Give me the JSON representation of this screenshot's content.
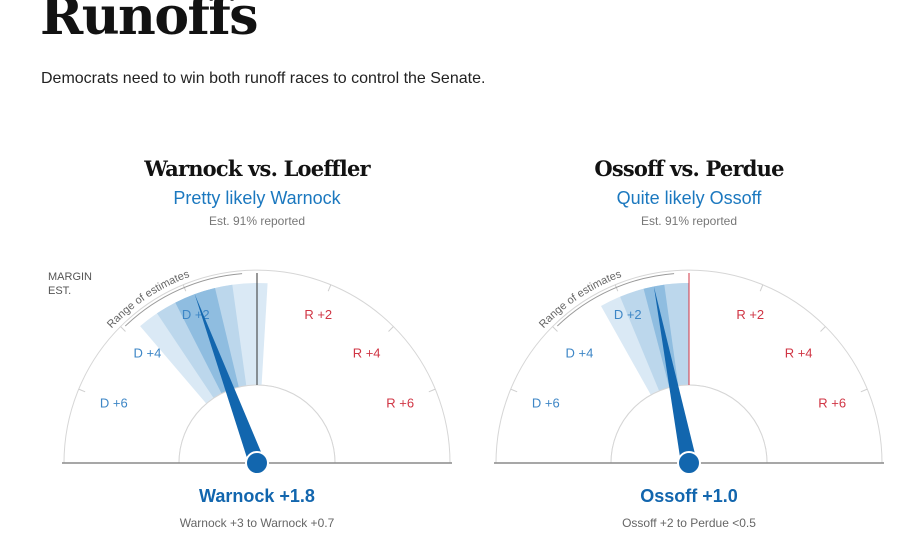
{
  "page": {
    "title": "Runoffs",
    "subtitle": "Democrats need to win both runoff races to control the Senate."
  },
  "legend": {
    "margin_label": "MARGIN",
    "est_label": "EST.",
    "range_label": "Range of estimates"
  },
  "colors": {
    "dem": "#1266ae",
    "dem_text": "#3d86c6",
    "rep": "#d03544",
    "band_outer": "#dae9f5",
    "band_mid": "#bcd7ec",
    "band_inner": "#8fbde0",
    "lean_text": "#1b78bf"
  },
  "chart_data": [
    {
      "type": "gauge",
      "title": "Warnock vs. Loeffler",
      "lean": "Pretty likely Warnock",
      "reported": "Est. 91% reported",
      "scale": "D +8 to R +8 margin, center 0",
      "tick_labels": [
        "D +6",
        "D +4",
        "D +2",
        "R +2",
        "R +4",
        "R +6"
      ],
      "ticks": [
        -6,
        -4,
        -2,
        2,
        4,
        6
      ],
      "estimate": -1.8,
      "bands": {
        "outer": [
          -3.6,
          0.3
        ],
        "mid": [
          -3.0,
          -0.7
        ],
        "inner": [
          -2.4,
          -1.2
        ]
      },
      "result_label": "Warnock +1.8",
      "range_label": "Warnock +3 to Warnock +0.7",
      "show_range_caption": true,
      "show_margin_label": true
    },
    {
      "type": "gauge",
      "title": "Ossoff vs. Perdue",
      "lean": "Quite likely Ossoff",
      "reported": "Est. 91% reported",
      "scale": "D +8 to R +8 margin, center 0",
      "tick_labels": [
        "D +6",
        "D +4",
        "D +2",
        "R +2",
        "R +4",
        "R +6"
      ],
      "ticks": [
        -6,
        -4,
        -2,
        2,
        4,
        6
      ],
      "estimate": -1.0,
      "bands": {
        "outer": [
          -2.6,
          0.0
        ],
        "mid": [
          -2.0,
          0.0
        ],
        "inner": [
          -1.3,
          -0.7
        ]
      },
      "result_label": "Ossoff +1.0",
      "range_label": "Ossoff +2 to Perdue <0.5",
      "show_range_caption": true,
      "show_margin_label": false
    }
  ]
}
